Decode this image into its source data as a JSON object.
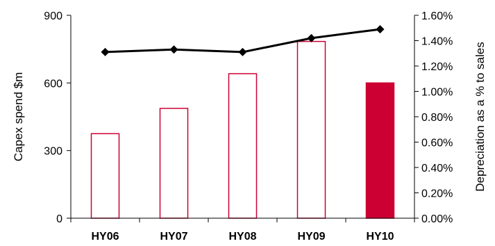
{
  "chart_data": {
    "type": "bar",
    "categories": [
      "HY06",
      "HY07",
      "HY08",
      "HY09",
      "HY10"
    ],
    "series": [
      {
        "name": "",
        "type": "bar",
        "axis": "left",
        "values": [
          375,
          487,
          641,
          784,
          600
        ],
        "fill": [
          "#ffffff",
          "#ffffff",
          "#ffffff",
          "#ffffff",
          "#cc0033"
        ],
        "stroke": "#cc0033"
      },
      {
        "name": "",
        "type": "line",
        "axis": "right",
        "values": [
          1.31,
          1.33,
          1.31,
          1.42,
          1.49
        ],
        "color": "#000000",
        "marker": "diamond"
      }
    ],
    "ylabel": "Capex spend $m",
    "ylim": [
      0,
      900
    ],
    "yticks": [
      0,
      300,
      600,
      900
    ],
    "ylabel_right": "Depreciation as a % to sales",
    "ylim_right": [
      0,
      1.6
    ],
    "yticks_right": [
      "0.00%",
      "0.20%",
      "0.40%",
      "0.60%",
      "0.80%",
      "1.00%",
      "1.20%",
      "1.40%",
      "1.60%"
    ],
    "grid": false,
    "legend": "none"
  }
}
